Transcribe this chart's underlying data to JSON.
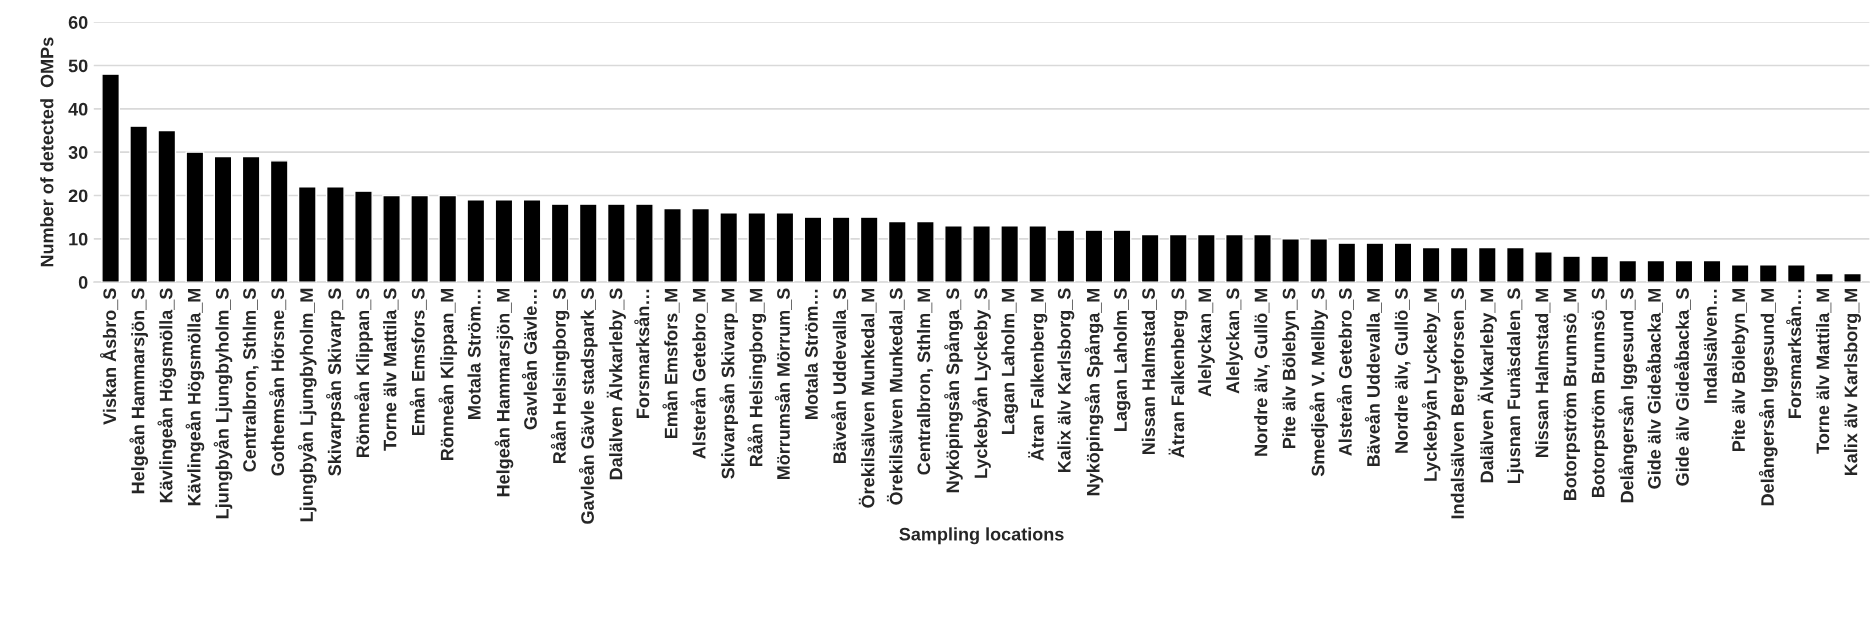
{
  "chart_data": {
    "type": "bar",
    "xlabel": "Sampling locations",
    "ylabel": "Number of detected  OMPs",
    "categories": [
      "Viskan Åsbro_S",
      "Helgeån Hammarsjön_S",
      "Kävlingeån Högsmölla_S",
      "Kävlingeån Högsmölla_M",
      "Ljungbyån Ljungbyholm_S",
      "Centralbron, Sthlm_S",
      "Gothemsån Hörsne_S",
      "Ljungbyån Ljungbyholm_M",
      "Skivarpsån Skivarp_S",
      "Rönneån Klippan_S",
      "Torne älv Mattila_S",
      "Emån Emsfors_S",
      "Rönneån Klippan_M",
      "Motala Ström…",
      "Helgeån Hammarsjön_M",
      "Gavleån Gävle…",
      "Råån Helsingborg_S",
      "Gavleån Gävle stadspark_S",
      "Dalälven Älvkarleby_S",
      "Forsmarksån…",
      "Emån Emsfors_M",
      "Alsterån Getebro_M",
      "Skivarpsån Skivarp_M",
      "Råån Helsingborg_M",
      "Mörrumsån Mörrum_S",
      "Motala Ström…",
      "Bäveån Uddevalla_S",
      "Örekilsälven Munkedal_M",
      "Örekilsälven Munkedal_S",
      "Centralbron, Sthlm_M",
      "Nyköpingsån Spånga_S",
      "Lyckebyån Lyckeby_S",
      "Lagan Laholm_M",
      "Ätran Falkenberg_M",
      "Kalix älv Karlsborg_S",
      "Nyköpingsån Spånga_M",
      "Lagan Laholm_S",
      "Nissan Halmstad_S",
      "Ätran Falkenberg_S",
      "Alelyckan_M",
      "Alelyckan_S",
      "Nordre älv, Gullö_M",
      "Pite älv Bölebyn_S",
      "Smedjeån V. Mellby_S",
      "Alsterån Getebro_S",
      "Bäveån Uddevalla_M",
      "Nordre älv, Gullö_S",
      "Lyckebyån Lyckeby_M",
      "Indalsälven Bergeforsen_S",
      "Dalälven Älvkarleby_M",
      "Ljusnan Funäsdalen_S",
      "Nissan Halmstad_M",
      "Botorpström Brunnsö_M",
      "Botorpström Brunnsö_S",
      "Delångersån Iggesund_S",
      "Gide älv Gideåbacka_M",
      "Gide älv Gideåbacka_S",
      "Indalsälven…",
      "Pite älv Bölebyn_M",
      "Delångersån Iggesund_M",
      "Forsmarksån…",
      "Torne älv Mattila_M",
      "Kalix älv Karlsborg_M"
    ],
    "values": [
      48,
      36,
      35,
      30,
      29,
      29,
      28,
      22,
      22,
      21,
      20,
      20,
      20,
      19,
      19,
      19,
      18,
      18,
      18,
      18,
      17,
      17,
      16,
      16,
      16,
      15,
      15,
      15,
      14,
      14,
      13,
      13,
      13,
      13,
      12,
      12,
      12,
      11,
      11,
      11,
      11,
      11,
      10,
      10,
      9,
      9,
      9,
      8,
      8,
      8,
      8,
      7,
      6,
      6,
      5,
      5,
      5,
      5,
      4,
      4,
      4,
      2,
      2
    ],
    "color": "#000000",
    "ylim": [
      0,
      60
    ],
    "yticks": [
      0,
      10,
      20,
      30,
      40,
      50,
      60
    ],
    "grid": "y"
  }
}
